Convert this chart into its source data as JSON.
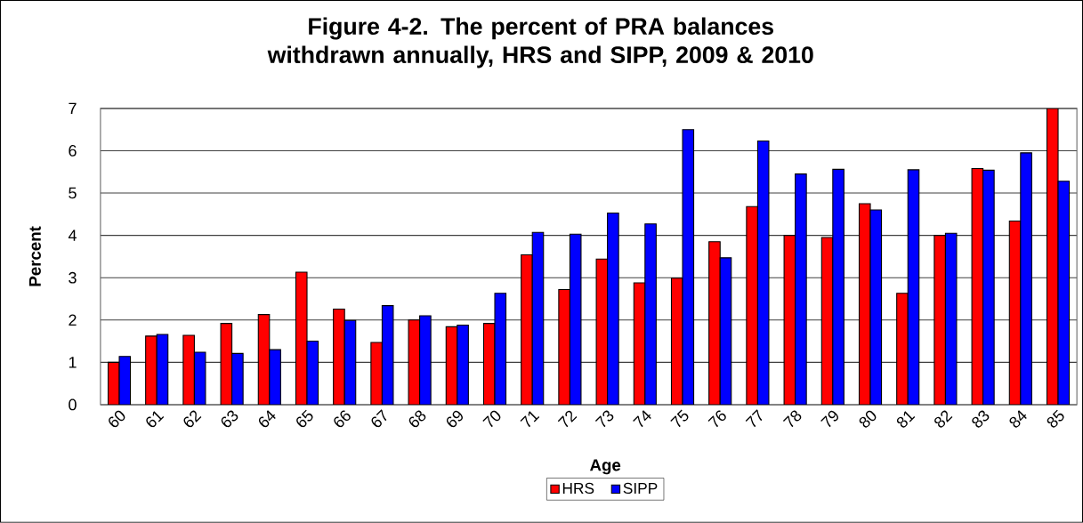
{
  "chart_data": {
    "type": "bar",
    "title": "Figure 4-2.  The percent of PRA balances withdrawn annually, HRS and SIPP, 2009 & 2010",
    "xlabel": "Age",
    "ylabel": "Percent",
    "categories": [
      "60",
      "61",
      "62",
      "63",
      "64",
      "65",
      "66",
      "67",
      "68",
      "69",
      "70",
      "71",
      "72",
      "73",
      "74",
      "75",
      "76",
      "77",
      "78",
      "79",
      "80",
      "81",
      "82",
      "83",
      "84",
      "85"
    ],
    "series": [
      {
        "name": "HRS",
        "color": "#ff0000",
        "values": [
          1.0,
          1.62,
          1.64,
          1.92,
          2.13,
          3.13,
          2.26,
          1.47,
          2.0,
          1.84,
          1.92,
          3.54,
          2.72,
          3.44,
          2.88,
          2.99,
          3.85,
          4.68,
          4.0,
          3.95,
          4.75,
          2.63,
          4.0,
          5.58,
          4.34,
          7.0
        ]
      },
      {
        "name": "SIPP",
        "color": "#0000ff",
        "values": [
          1.14,
          1.66,
          1.24,
          1.21,
          1.3,
          1.5,
          1.99,
          2.34,
          2.1,
          1.88,
          2.63,
          4.07,
          4.03,
          4.53,
          4.27,
          6.5,
          3.47,
          6.23,
          5.45,
          5.56,
          4.6,
          5.55,
          4.05,
          5.54,
          5.95,
          5.28
        ]
      }
    ],
    "ylim": [
      0,
      7
    ],
    "yticks": [
      0,
      1,
      2,
      3,
      4,
      5,
      6,
      7
    ],
    "grid": "y",
    "legend": "bottom"
  }
}
